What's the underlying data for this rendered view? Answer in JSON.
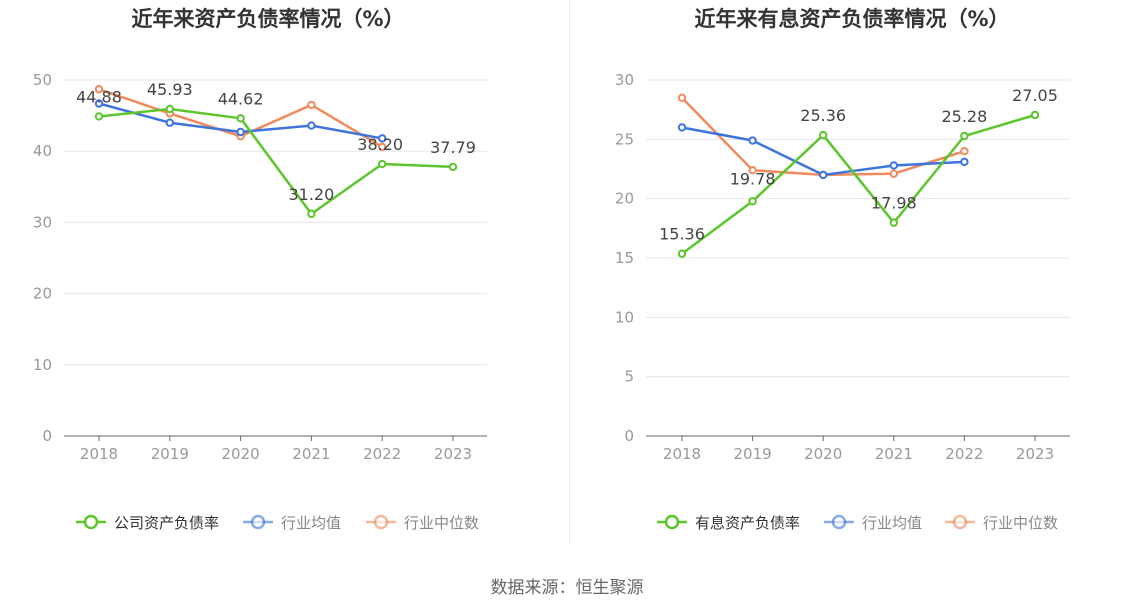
{
  "source": "数据来源：恒生聚源",
  "colors": {
    "company": "#5cc52c",
    "avg": "#3e74dd",
    "median": "#f08a5d",
    "grid": "#e4e7ee",
    "axis": "#666666",
    "tick_text": "#999999",
    "title": "#333333",
    "label_text": "#444444"
  },
  "chart_data": [
    {
      "type": "line",
      "title": "近年来资产负债率情况（%）",
      "categories": [
        "2018",
        "2019",
        "2020",
        "2021",
        "2022",
        "2023"
      ],
      "ylim": [
        0,
        50
      ],
      "yticks": [
        0,
        10,
        20,
        30,
        40,
        50
      ],
      "grid": true,
      "legend_position": "bottom",
      "series": [
        {
          "name": "公司资产负债率",
          "key": "company",
          "values": [
            44.88,
            45.93,
            44.62,
            31.2,
            38.2,
            37.79
          ],
          "labels": [
            "44.88",
            "45.93",
            "44.62",
            "31.20",
            "38.20",
            "37.79"
          ]
        },
        {
          "name": "行业均值",
          "key": "avg",
          "values": [
            46.7,
            44.0,
            42.7,
            43.6,
            41.8,
            null
          ]
        },
        {
          "name": "行业中位数",
          "key": "median",
          "values": [
            48.7,
            45.3,
            42.1,
            46.5,
            40.6,
            null
          ]
        }
      ]
    },
    {
      "type": "line",
      "title": "近年来有息资产负债率情况（%）",
      "categories": [
        "2018",
        "2019",
        "2020",
        "2021",
        "2022",
        "2023"
      ],
      "ylim": [
        0,
        30
      ],
      "yticks": [
        0,
        5,
        10,
        15,
        20,
        25,
        30
      ],
      "grid": true,
      "legend_position": "bottom",
      "series": [
        {
          "name": "有息资产负债率",
          "key": "company",
          "values": [
            15.36,
            19.78,
            25.36,
            17.98,
            25.28,
            27.05
          ],
          "labels": [
            "15.36",
            "19.78",
            "25.36",
            "17.98",
            "25.28",
            "27.05"
          ]
        },
        {
          "name": "行业均值",
          "key": "avg",
          "values": [
            26.0,
            24.9,
            22.0,
            22.8,
            23.1,
            null
          ]
        },
        {
          "name": "行业中位数",
          "key": "median",
          "values": [
            28.5,
            22.4,
            22.0,
            22.1,
            24.0,
            null
          ]
        }
      ]
    }
  ]
}
